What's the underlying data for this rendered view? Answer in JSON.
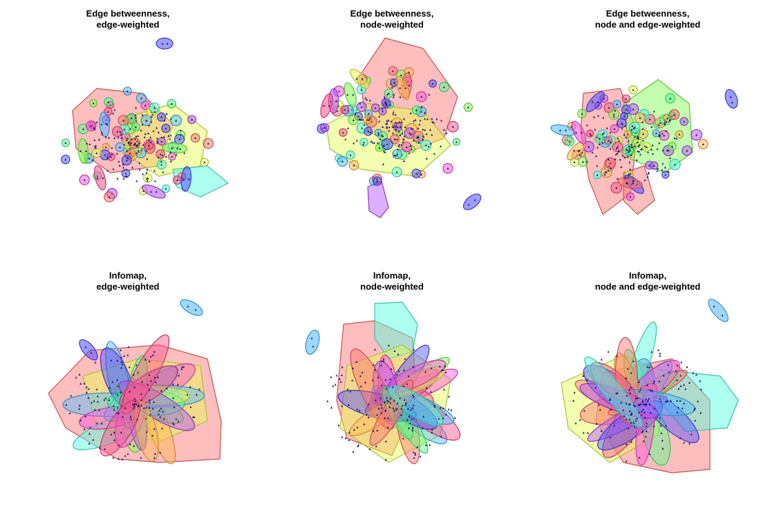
{
  "panels": [
    {
      "id": "p1",
      "title_line1": "Edge betweenness,",
      "title_line2": "edge-weighted"
    },
    {
      "id": "p2",
      "title_line1": "Edge betweenness,",
      "title_line2": "node-weighted"
    },
    {
      "id": "p3",
      "title_line1": "Edge betweenness,",
      "title_line2": "node and edge-weighted"
    },
    {
      "id": "p4",
      "title_line1": "Infomap,",
      "title_line2": "edge-weighted"
    },
    {
      "id": "p5",
      "title_line1": "Infomap,",
      "title_line2": "node-weighted"
    },
    {
      "id": "p6",
      "title_line1": "Infomap,",
      "title_line2": "node and edge-weighted"
    }
  ],
  "palette": [
    "#ff6f6f",
    "#ffb84d",
    "#e5ff4d",
    "#7dff4d",
    "#4dff8a",
    "#4dffe0",
    "#4dbaff",
    "#4d4dff",
    "#b84dff",
    "#ff4de0",
    "#ff4d8a"
  ]
}
